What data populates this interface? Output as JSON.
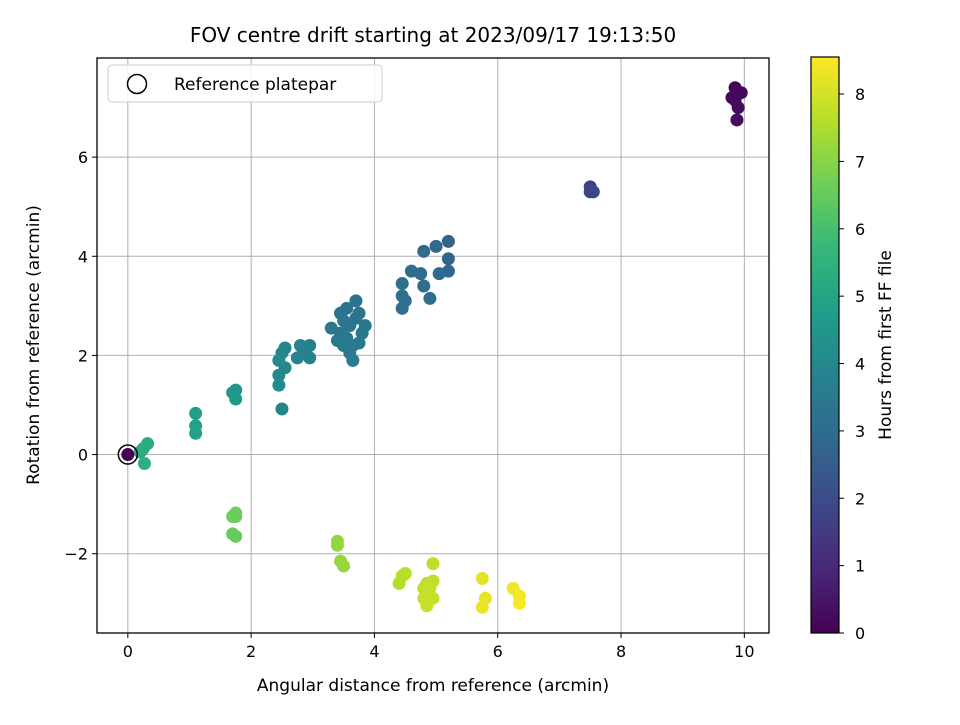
{
  "chart_data": {
    "type": "scatter",
    "title": "FOV centre drift starting at 2023/09/17 19:13:50",
    "xlabel": "Angular distance from reference (arcmin)",
    "ylabel": "Rotation from reference (arcmin)",
    "xlim": [
      -0.5,
      10.4
    ],
    "ylim": [
      -3.6,
      8.0
    ],
    "xticks": [
      0,
      2,
      4,
      6,
      8,
      10
    ],
    "xtick_labels": [
      "0",
      "2",
      "4",
      "6",
      "8",
      "10"
    ],
    "yticks": [
      -2,
      0,
      2,
      4,
      6
    ],
    "ytick_labels": [
      "−2",
      "0",
      "2",
      "4",
      "6"
    ],
    "grid": true,
    "legend": {
      "position": "top-left",
      "entries": [
        "Reference platepar"
      ]
    },
    "colorbar": {
      "label": "Hours from first FF file",
      "range": [
        0,
        8.55
      ],
      "ticks": [
        0,
        1,
        2,
        3,
        4,
        5,
        6,
        7,
        8
      ],
      "tick_labels": [
        "0",
        "1",
        "2",
        "3",
        "4",
        "5",
        "6",
        "7",
        "8"
      ],
      "colormap": "viridis"
    },
    "colormap_stops": [
      "#440154",
      "#482878",
      "#3e4989",
      "#31688e",
      "#26828e",
      "#1f9e89",
      "#35b779",
      "#6ece58",
      "#b5de2b",
      "#fde725"
    ],
    "reference_point": {
      "x": 0,
      "y": 0,
      "color": "#440154"
    },
    "points": [
      {
        "x": 9.85,
        "y": 7.4,
        "t": 0.05
      },
      {
        "x": 9.9,
        "y": 7.3,
        "t": 0.1
      },
      {
        "x": 9.8,
        "y": 7.2,
        "t": 0.12
      },
      {
        "x": 9.95,
        "y": 7.3,
        "t": 0.15
      },
      {
        "x": 9.85,
        "y": 7.15,
        "t": 0.2
      },
      {
        "x": 9.9,
        "y": 7.0,
        "t": 0.25
      },
      {
        "x": 9.88,
        "y": 6.75,
        "t": 0.3
      },
      {
        "x": 7.5,
        "y": 5.4,
        "t": 1.7
      },
      {
        "x": 7.55,
        "y": 5.3,
        "t": 1.8
      },
      {
        "x": 7.5,
        "y": 5.3,
        "t": 1.75
      },
      {
        "x": 5.2,
        "y": 4.3,
        "t": 2.7
      },
      {
        "x": 5.2,
        "y": 3.95,
        "t": 2.75
      },
      {
        "x": 5.2,
        "y": 3.7,
        "t": 2.8
      },
      {
        "x": 5.0,
        "y": 4.2,
        "t": 2.85
      },
      {
        "x": 5.05,
        "y": 3.65,
        "t": 2.9
      },
      {
        "x": 4.8,
        "y": 4.1,
        "t": 2.95
      },
      {
        "x": 4.75,
        "y": 3.65,
        "t": 3.0
      },
      {
        "x": 4.8,
        "y": 3.4,
        "t": 3.0
      },
      {
        "x": 4.9,
        "y": 3.15,
        "t": 3.05
      },
      {
        "x": 4.6,
        "y": 3.7,
        "t": 3.05
      },
      {
        "x": 4.45,
        "y": 3.45,
        "t": 3.1
      },
      {
        "x": 4.45,
        "y": 3.2,
        "t": 3.1
      },
      {
        "x": 4.5,
        "y": 3.1,
        "t": 3.15
      },
      {
        "x": 4.45,
        "y": 2.95,
        "t": 3.15
      },
      {
        "x": 3.7,
        "y": 3.1,
        "t": 3.2
      },
      {
        "x": 3.75,
        "y": 2.85,
        "t": 3.25
      },
      {
        "x": 3.55,
        "y": 2.95,
        "t": 3.3
      },
      {
        "x": 3.45,
        "y": 2.85,
        "t": 3.3
      },
      {
        "x": 3.5,
        "y": 2.7,
        "t": 3.35
      },
      {
        "x": 3.6,
        "y": 2.6,
        "t": 3.35
      },
      {
        "x": 3.3,
        "y": 2.55,
        "t": 3.4
      },
      {
        "x": 3.45,
        "y": 2.45,
        "t": 3.4
      },
      {
        "x": 3.55,
        "y": 2.35,
        "t": 3.45
      },
      {
        "x": 3.65,
        "y": 2.2,
        "t": 3.5
      },
      {
        "x": 3.6,
        "y": 2.05,
        "t": 3.5
      },
      {
        "x": 3.65,
        "y": 1.9,
        "t": 3.55
      },
      {
        "x": 3.75,
        "y": 2.25,
        "t": 3.5
      },
      {
        "x": 3.8,
        "y": 2.45,
        "t": 3.45
      },
      {
        "x": 3.85,
        "y": 2.6,
        "t": 3.4
      },
      {
        "x": 3.7,
        "y": 2.75,
        "t": 3.35
      },
      {
        "x": 3.4,
        "y": 2.3,
        "t": 3.45
      },
      {
        "x": 3.5,
        "y": 2.2,
        "t": 3.5
      },
      {
        "x": 2.95,
        "y": 2.2,
        "t": 3.7
      },
      {
        "x": 2.95,
        "y": 1.95,
        "t": 3.75
      },
      {
        "x": 2.85,
        "y": 2.05,
        "t": 3.7
      },
      {
        "x": 2.8,
        "y": 2.2,
        "t": 3.75
      },
      {
        "x": 2.75,
        "y": 1.95,
        "t": 3.8
      },
      {
        "x": 2.55,
        "y": 2.15,
        "t": 3.9
      },
      {
        "x": 2.5,
        "y": 2.05,
        "t": 3.95
      },
      {
        "x": 2.45,
        "y": 1.9,
        "t": 4.0
      },
      {
        "x": 2.55,
        "y": 1.75,
        "t": 4.0
      },
      {
        "x": 2.45,
        "y": 1.6,
        "t": 4.05
      },
      {
        "x": 2.45,
        "y": 1.4,
        "t": 4.1
      },
      {
        "x": 2.5,
        "y": 0.92,
        "t": 3.9
      },
      {
        "x": 1.75,
        "y": 1.3,
        "t": 4.5
      },
      {
        "x": 1.7,
        "y": 1.25,
        "t": 4.55
      },
      {
        "x": 1.75,
        "y": 1.12,
        "t": 4.6
      },
      {
        "x": 1.1,
        "y": 0.83,
        "t": 4.8
      },
      {
        "x": 1.1,
        "y": 0.58,
        "t": 4.85
      },
      {
        "x": 1.1,
        "y": 0.43,
        "t": 4.9
      },
      {
        "x": 0.32,
        "y": 0.22,
        "t": 5.2
      },
      {
        "x": 0.25,
        "y": 0.12,
        "t": 5.25
      },
      {
        "x": 0.2,
        "y": 0.05,
        "t": 5.3
      },
      {
        "x": 0.27,
        "y": -0.18,
        "t": 5.4
      },
      {
        "x": 1.75,
        "y": -1.18,
        "t": 6.6
      },
      {
        "x": 1.7,
        "y": -1.25,
        "t": 6.65
      },
      {
        "x": 1.75,
        "y": -1.25,
        "t": 6.6
      },
      {
        "x": 1.7,
        "y": -1.6,
        "t": 6.55
      },
      {
        "x": 1.75,
        "y": -1.65,
        "t": 6.55
      },
      {
        "x": 3.4,
        "y": -1.75,
        "t": 7.1
      },
      {
        "x": 3.4,
        "y": -1.83,
        "t": 7.15
      },
      {
        "x": 3.45,
        "y": -2.15,
        "t": 7.2
      },
      {
        "x": 3.5,
        "y": -2.25,
        "t": 7.2
      },
      {
        "x": 4.5,
        "y": -2.4,
        "t": 7.6
      },
      {
        "x": 4.45,
        "y": -2.45,
        "t": 7.65
      },
      {
        "x": 4.4,
        "y": -2.6,
        "t": 7.6
      },
      {
        "x": 4.95,
        "y": -2.2,
        "t": 7.7
      },
      {
        "x": 4.95,
        "y": -2.55,
        "t": 7.75
      },
      {
        "x": 4.85,
        "y": -2.6,
        "t": 7.7
      },
      {
        "x": 4.8,
        "y": -2.7,
        "t": 7.75
      },
      {
        "x": 4.9,
        "y": -2.7,
        "t": 7.8
      },
      {
        "x": 4.8,
        "y": -2.9,
        "t": 7.8
      },
      {
        "x": 4.95,
        "y": -2.9,
        "t": 7.85
      },
      {
        "x": 4.85,
        "y": -3.05,
        "t": 7.85
      },
      {
        "x": 5.75,
        "y": -2.5,
        "t": 8.2
      },
      {
        "x": 5.8,
        "y": -2.9,
        "t": 8.25
      },
      {
        "x": 5.75,
        "y": -3.08,
        "t": 8.3
      },
      {
        "x": 6.25,
        "y": -2.7,
        "t": 8.4
      },
      {
        "x": 6.35,
        "y": -2.85,
        "t": 8.45
      },
      {
        "x": 6.35,
        "y": -3.0,
        "t": 8.5
      }
    ]
  }
}
